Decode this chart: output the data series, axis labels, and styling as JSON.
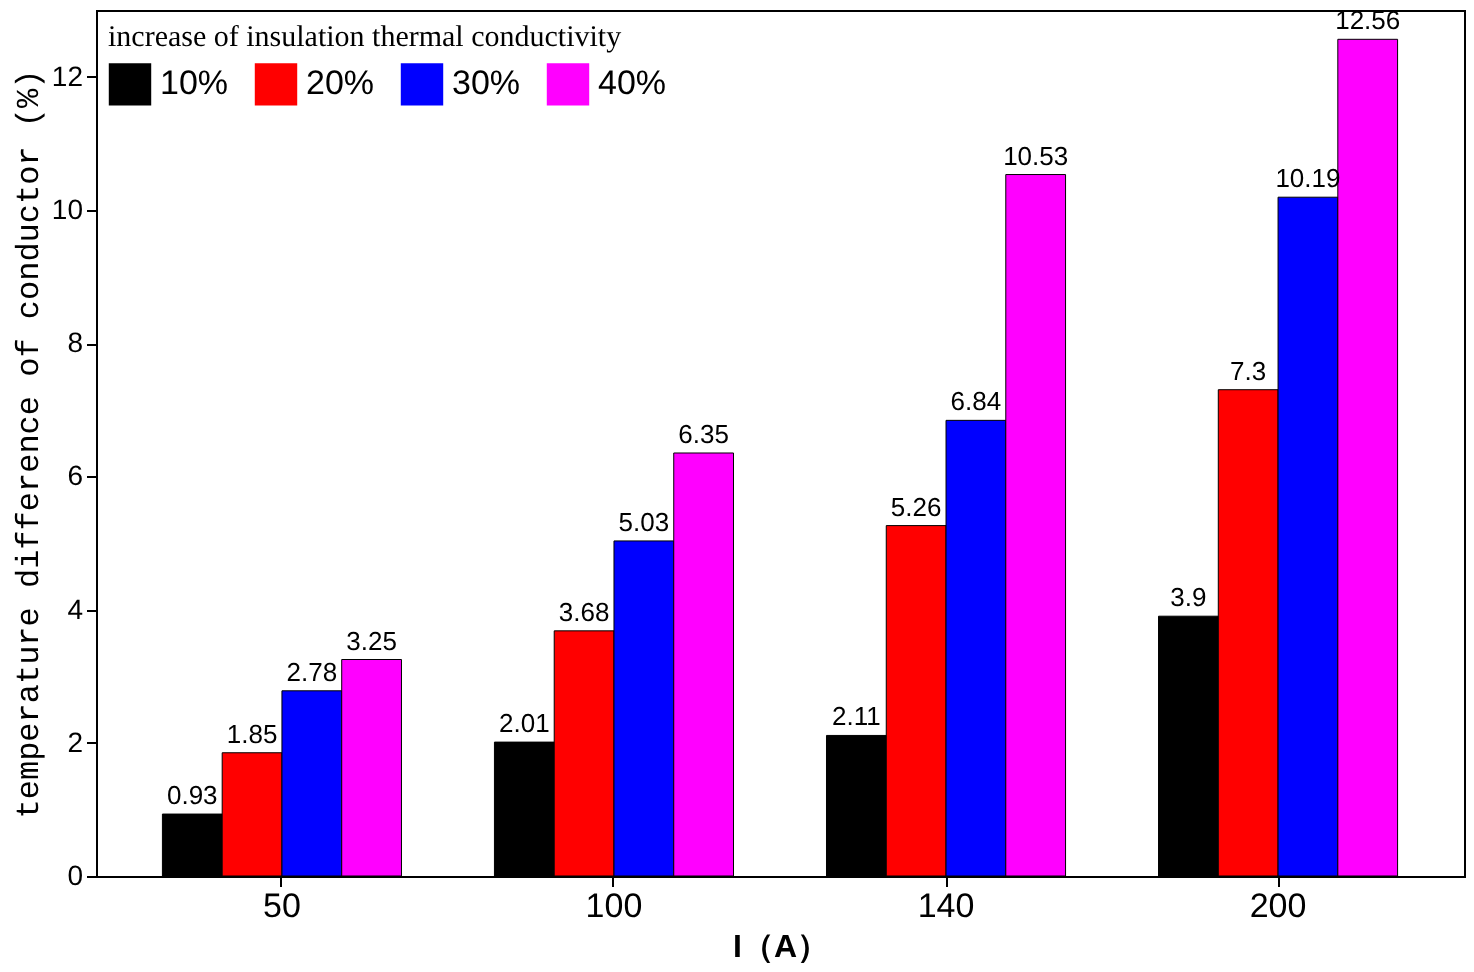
{
  "chart_data": {
    "type": "bar",
    "categories": [
      "50",
      "100",
      "140",
      "200"
    ],
    "series": [
      {
        "name": "10%",
        "color": "#000000",
        "values": [
          0.93,
          2.01,
          2.11,
          3.9
        ]
      },
      {
        "name": "20%",
        "color": "#ff0000",
        "values": [
          1.85,
          3.68,
          5.26,
          7.3
        ]
      },
      {
        "name": "30%",
        "color": "#0000ff",
        "values": [
          2.78,
          5.03,
          6.84,
          10.19
        ]
      },
      {
        "name": "40%",
        "color": "#ff00ff",
        "values": [
          3.25,
          6.35,
          10.53,
          12.56
        ]
      }
    ],
    "xlabel": "I（A）",
    "ylabel": "temperature difference of conductor (%)",
    "legend_title": "increase of insulation thermal conductivity",
    "ylim": [
      0,
      13
    ],
    "yticks": [
      0,
      2,
      4,
      6,
      8,
      10,
      12
    ],
    "data_labels": true,
    "legend": "top left",
    "grid": false
  }
}
